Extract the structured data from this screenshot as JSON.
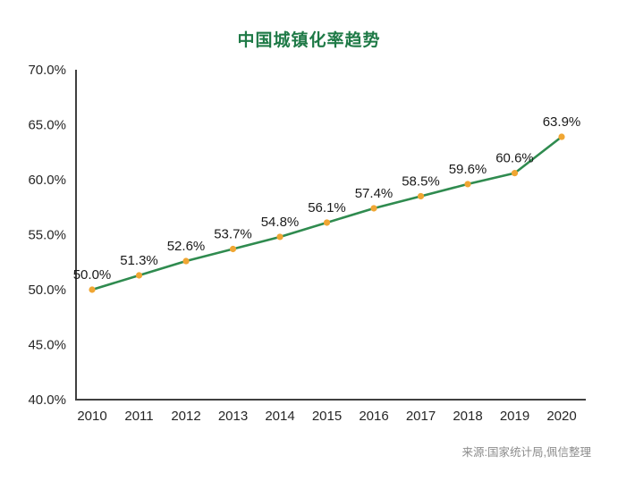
{
  "title": {
    "text": "中国城镇化率趋势",
    "color": "#1F7A47"
  },
  "source_note": "来源:国家统计局,佩信整理",
  "chart_data": {
    "type": "line",
    "title": "中国城镇化率趋势",
    "categories": [
      "2010",
      "2011",
      "2012",
      "2013",
      "2014",
      "2015",
      "2016",
      "2017",
      "2018",
      "2019",
      "2020"
    ],
    "series": [
      {
        "name": "城镇化率",
        "values": [
          50.0,
          51.3,
          52.6,
          53.7,
          54.8,
          56.1,
          57.4,
          58.5,
          59.6,
          60.6,
          63.9
        ],
        "data_labels": [
          "50.0%",
          "51.3%",
          "52.6%",
          "53.7%",
          "54.8%",
          "56.1%",
          "57.4%",
          "58.5%",
          "59.6%",
          "60.6%",
          "63.9%"
        ]
      }
    ],
    "xlabel": "",
    "ylabel": "",
    "ylim": [
      40,
      70
    ],
    "ytick_step": 5,
    "ytick_labels": [
      "40.0%",
      "45.0%",
      "50.0%",
      "55.0%",
      "60.0%",
      "65.0%",
      "70.0%"
    ],
    "grid": false,
    "legend_position": "none",
    "colors": {
      "line": "#2F8B4F",
      "marker": "#F0A633",
      "axis": "#404040",
      "tick_label": "#262626",
      "data_label": "#1a1a1a"
    }
  }
}
